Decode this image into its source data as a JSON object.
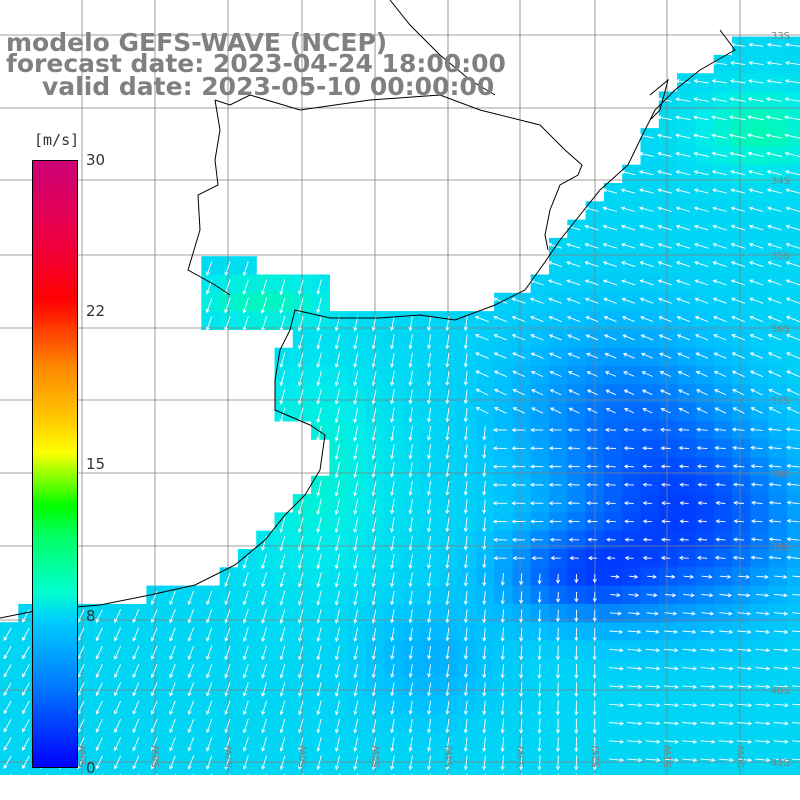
{
  "title": {
    "line1": "modelo GEFS-WAVE (NCEP)",
    "line2": "forecast date: 2023-04-24 18:00:00",
    "line3": "valid date: 2023-05-10 00:00:00"
  },
  "colorbar": {
    "units": "[m/s]",
    "ticks": [
      {
        "label": "30",
        "value": 30
      },
      {
        "label": "22",
        "value": 22
      },
      {
        "label": "15",
        "value": 15
      },
      {
        "label": "8",
        "value": 8
      },
      {
        "label": "0",
        "value": 0
      }
    ]
  },
  "lat_labels": [
    "33S",
    "34S",
    "35S",
    "36S",
    "37S",
    "38S",
    "39S",
    "40S",
    "41S"
  ],
  "lon_labels": [
    "59W",
    "58W",
    "57W",
    "56W",
    "55W",
    "54W",
    "53W",
    "52W",
    "51W",
    "50W"
  ],
  "colors": {
    "land": "#ffffff",
    "grid": "#808080",
    "coast": "#000000",
    "arrow": "#ffffff",
    "label": "#808080"
  }
}
